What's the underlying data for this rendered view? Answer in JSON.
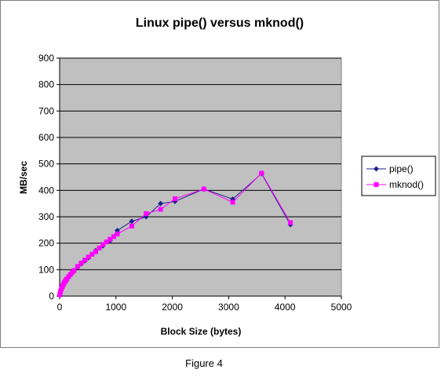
{
  "caption": "Figure 4",
  "colors": {
    "plot_bg": "#c0c0c0",
    "grid": "#000000",
    "pipe": "#1f1f8f",
    "mknod": "#ff00ff"
  },
  "chart_data": {
    "type": "line",
    "title": "Linux pipe() versus mknod()",
    "xlabel": "Block Size (bytes)",
    "ylabel": "MB/sec",
    "xlim": [
      0,
      5000
    ],
    "ylim": [
      0,
      900
    ],
    "xticks": [
      0,
      1000,
      2000,
      3000,
      4000,
      5000
    ],
    "yticks": [
      0,
      100,
      200,
      300,
      400,
      500,
      600,
      700,
      800,
      900
    ],
    "grid": true,
    "legend_position": "right",
    "series": [
      {
        "name": "pipe()",
        "marker": "diamond",
        "color": "#1f1f8f",
        "x": [
          4,
          8,
          16,
          32,
          48,
          64,
          80,
          96,
          112,
          128,
          160,
          192,
          224,
          256,
          320,
          384,
          448,
          512,
          640,
          768,
          896,
          1024,
          1280,
          1536,
          1792,
          2048,
          2560,
          3072,
          3584,
          4096
        ],
        "y": [
          5,
          10,
          18,
          28,
          35,
          42,
          48,
          53,
          58,
          63,
          72,
          80,
          88,
          95,
          110,
          122,
          133,
          145,
          172,
          190,
          210,
          248,
          283,
          300,
          350,
          358,
          405,
          367,
          463,
          270
        ]
      },
      {
        "name": "mknod()",
        "marker": "square",
        "color": "#ff00ff",
        "x": [
          4,
          8,
          16,
          32,
          48,
          64,
          80,
          96,
          112,
          128,
          160,
          192,
          224,
          256,
          320,
          384,
          448,
          512,
          576,
          640,
          704,
          768,
          832,
          896,
          960,
          1024,
          1280,
          1536,
          1792,
          2048,
          2560,
          3072,
          3584,
          4096
        ],
        "y": [
          5,
          10,
          18,
          28,
          36,
          43,
          50,
          55,
          60,
          65,
          74,
          82,
          90,
          97,
          112,
          125,
          136,
          148,
          158,
          168,
          182,
          195,
          205,
          215,
          225,
          235,
          265,
          312,
          328,
          368,
          405,
          355,
          465,
          278
        ]
      }
    ]
  }
}
